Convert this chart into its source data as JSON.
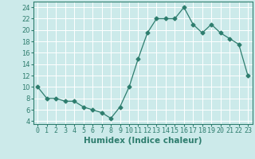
{
  "x": [
    0,
    1,
    2,
    3,
    4,
    5,
    6,
    7,
    8,
    9,
    10,
    11,
    12,
    13,
    14,
    15,
    16,
    17,
    18,
    19,
    20,
    21,
    22,
    23
  ],
  "y": [
    10,
    8,
    8,
    7.5,
    7.5,
    6.5,
    6,
    5.5,
    4.5,
    6.5,
    10,
    15,
    19.5,
    22,
    22,
    22,
    24,
    21,
    19.5,
    21,
    19.5,
    18.5,
    17.5,
    12
  ],
  "line_color": "#2e7d6e",
  "marker": "D",
  "marker_size": 2.5,
  "bg_color": "#cceaea",
  "grid_color": "#ffffff",
  "xlabel": "Humidex (Indice chaleur)",
  "xlabel_fontsize": 7.5,
  "tick_fontsize": 6,
  "xlim": [
    -0.5,
    23.5
  ],
  "ylim": [
    3.5,
    25
  ],
  "yticks": [
    4,
    6,
    8,
    10,
    12,
    14,
    16,
    18,
    20,
    22,
    24
  ],
  "xticks": [
    0,
    1,
    2,
    3,
    4,
    5,
    6,
    7,
    8,
    9,
    10,
    11,
    12,
    13,
    14,
    15,
    16,
    17,
    18,
    19,
    20,
    21,
    22,
    23
  ]
}
